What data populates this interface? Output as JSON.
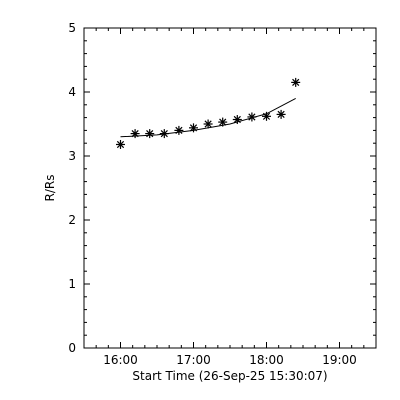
{
  "chart_data": {
    "type": "scatter",
    "xlabel": "Start Time (26-Sep-25 15:30:07)",
    "ylabel": "R/Rs",
    "x_tick_labels": [
      "16:00",
      "17:00",
      "18:00",
      "19:00"
    ],
    "x_tick_hours": [
      16,
      17,
      18,
      19
    ],
    "y_tick_labels": [
      "0",
      "1",
      "2",
      "3",
      "4",
      "5"
    ],
    "xlim": [
      "15:30",
      "19:30"
    ],
    "ylim": [
      0,
      5
    ],
    "grid": false,
    "series": [
      {
        "marker": "asterisk",
        "x": [
          "16:00",
          "16:12",
          "16:24",
          "16:36",
          "16:48",
          "17:00",
          "17:12",
          "17:24",
          "17:36",
          "17:48",
          "18:00",
          "18:12",
          "18:24"
        ],
        "y": [
          3.18,
          3.35,
          3.35,
          3.35,
          3.4,
          3.44,
          3.5,
          3.53,
          3.57,
          3.61,
          3.62,
          3.65,
          4.15
        ]
      },
      {
        "style": "line",
        "x": [
          "16:00",
          "16:30",
          "17:00",
          "17:30",
          "18:00",
          "18:24"
        ],
        "y": [
          3.3,
          3.33,
          3.4,
          3.5,
          3.66,
          3.9
        ]
      }
    ]
  }
}
